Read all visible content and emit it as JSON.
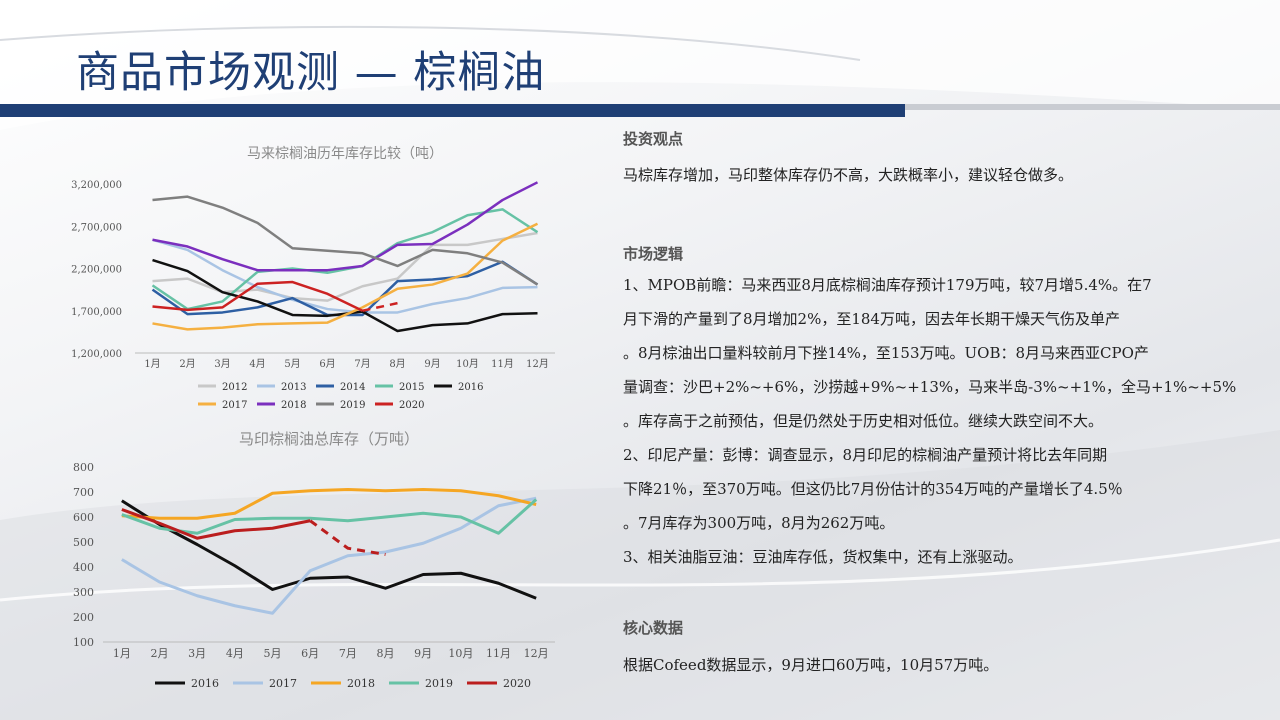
{
  "title": "商品市场观测 — 棕榈油",
  "colors": {
    "title": "#1f3f75",
    "bar": "#1f3f75"
  },
  "sections": {
    "view_heading": "投资观点",
    "view_text": "马棕库存增加，马印整体库存仍不高，大跌概率小，建议轻仓做多。",
    "logic_heading": "市场逻辑",
    "logic_lines": [
      "1、MPOB前瞻：马来西亚8月底棕榈油库存预计179万吨，较7月增5.4%。在7",
      "月下滑的产量到了8月增加2%，至184万吨，因去年长期干燥天气伤及单产",
      "。8月棕油出口量料较前月下挫14%，至153万吨。UOB：8月马来西亚CPO产",
      "量调查：沙巴+2%~+6%，沙捞越+9%~+13%，马来半岛-3%~+1%，全马+1%~+5%",
      "。库存高于之前预估，但是仍然处于历史相对低位。继续大跌空间不大。",
      "2、印尼产量：彭博：调查显示，8月印尼的棕榈油产量预计将比去年同期",
      "下降21％，至370万吨。但这仍比7月份估计的354万吨的产量增长了4.5％",
      "。7月库存为300万吨，8月为262万吨。",
      "3、相关油脂豆油：豆油库存低，货权集中，还有上涨驱动。"
    ],
    "core_heading": "核心数据",
    "core_text": "根据Cofeed数据显示，9月进口60万吨，10月57万吨。"
  },
  "chart_data": [
    {
      "type": "line",
      "title": "马来棕榈油历年库存比较（吨）",
      "categories": [
        "1月",
        "2月",
        "3月",
        "4月",
        "5月",
        "6月",
        "7月",
        "8月",
        "9月",
        "10月",
        "11月",
        "12月"
      ],
      "ylim": [
        1200000,
        3200000
      ],
      "yticks": [
        1200000,
        1700000,
        2200000,
        2700000,
        3200000
      ],
      "ytick_labels": [
        "1,200,000",
        "1,700,000",
        "2,200,000",
        "2,700,000",
        "3,200,000"
      ],
      "legend_position": "bottom",
      "series": [
        {
          "name": "2012",
          "color": "#c8c8c8",
          "values": [
            2050000,
            2080000,
            1920000,
            1950000,
            1850000,
            1820000,
            1990000,
            2080000,
            2480000,
            2480000,
            2550000,
            2620000
          ]
        },
        {
          "name": "2013",
          "color": "#a9c4e4",
          "values": [
            2540000,
            2420000,
            2180000,
            1980000,
            1830000,
            1720000,
            1680000,
            1680000,
            1780000,
            1850000,
            1970000,
            1980000
          ]
        },
        {
          "name": "2014",
          "color": "#2e5fa3",
          "values": [
            1950000,
            1660000,
            1680000,
            1740000,
            1850000,
            1650000,
            1650000,
            2050000,
            2070000,
            2110000,
            2280000,
            2010000
          ]
        },
        {
          "name": "2015",
          "color": "#66c2a5",
          "values": [
            2000000,
            1720000,
            1810000,
            2160000,
            2200000,
            2150000,
            2230000,
            2500000,
            2630000,
            2830000,
            2900000,
            2630000
          ]
        },
        {
          "name": "2016",
          "color": "#111111",
          "values": [
            2300000,
            2170000,
            1920000,
            1810000,
            1650000,
            1640000,
            1690000,
            1460000,
            1530000,
            1550000,
            1660000,
            1670000
          ]
        },
        {
          "name": "2017",
          "color": "#f5b041",
          "values": [
            1550000,
            1480000,
            1500000,
            1540000,
            1550000,
            1560000,
            1740000,
            1960000,
            2010000,
            2140000,
            2530000,
            2730000
          ]
        },
        {
          "name": "2018",
          "color": "#7b2fbe",
          "values": [
            2540000,
            2460000,
            2310000,
            2180000,
            2180000,
            2180000,
            2230000,
            2480000,
            2490000,
            2720000,
            3010000,
            3220000
          ]
        },
        {
          "name": "2019",
          "color": "#7f7f7f",
          "values": [
            3010000,
            3050000,
            2920000,
            2740000,
            2440000,
            2410000,
            2380000,
            2230000,
            2420000,
            2380000,
            2270000,
            2010000
          ]
        },
        {
          "name": "2020",
          "color": "#cc2222",
          "values": [
            1750000,
            1710000,
            1740000,
            2020000,
            2040000,
            1900000,
            1700000,
            1790000,
            null,
            null,
            null,
            null
          ],
          "dash_from": 6
        }
      ]
    },
    {
      "type": "line",
      "title": "马印棕榈油总库存（万吨）",
      "categories": [
        "1月",
        "2月",
        "3月",
        "4月",
        "5月",
        "6月",
        "7月",
        "8月",
        "9月",
        "10月",
        "11月",
        "12月"
      ],
      "ylim": [
        100,
        800
      ],
      "yticks": [
        100,
        200,
        300,
        400,
        500,
        600,
        700,
        800
      ],
      "ytick_labels": [
        "100",
        "200",
        "300",
        "400",
        "500",
        "600",
        "700",
        "800"
      ],
      "legend_position": "bottom",
      "series": [
        {
          "name": "2016",
          "color": "#111111",
          "values": [
            665,
            570,
            490,
            405,
            310,
            355,
            360,
            315,
            370,
            375,
            335,
            275
          ]
        },
        {
          "name": "2017",
          "color": "#a9c4e4",
          "values": [
            430,
            340,
            285,
            245,
            215,
            385,
            445,
            460,
            495,
            555,
            645,
            675
          ]
        },
        {
          "name": "2018",
          "color": "#f5a623",
          "values": [
            605,
            595,
            595,
            615,
            695,
            705,
            710,
            705,
            710,
            705,
            685,
            650
          ]
        },
        {
          "name": "2019",
          "color": "#66c2a5",
          "values": [
            610,
            555,
            535,
            590,
            595,
            595,
            585,
            600,
            615,
            600,
            535,
            670
          ]
        },
        {
          "name": "2020",
          "color": "#bb1e1e",
          "values": [
            630,
            575,
            515,
            545,
            555,
            585,
            475,
            450,
            null,
            null,
            null,
            null
          ],
          "dash_from": 5
        }
      ]
    }
  ]
}
